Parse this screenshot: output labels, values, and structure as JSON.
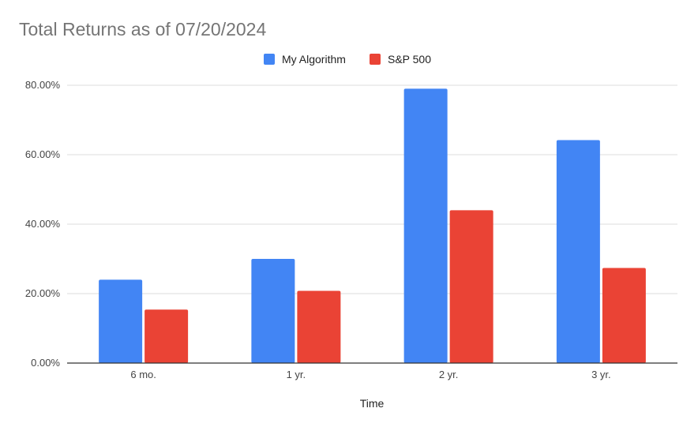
{
  "chart_data": {
    "type": "bar",
    "title": "Total Returns as of 07/20/2024",
    "xlabel": "Time",
    "ylabel": "",
    "categories": [
      "6 mo.",
      "1 yr.",
      "2 yr.",
      "3 yr."
    ],
    "series": [
      {
        "name": "My Algorithm",
        "color": "#4285F4",
        "values": [
          24.0,
          30.0,
          79.0,
          64.2
        ]
      },
      {
        "name": "S&P 500",
        "color": "#EA4335",
        "values": [
          15.4,
          20.8,
          44.0,
          27.4
        ]
      }
    ],
    "ylim": [
      0,
      80
    ],
    "yticks": [
      "0.00%",
      "20.00%",
      "40.00%",
      "60.00%",
      "80.00%"
    ],
    "grid": true,
    "legend_position": "top"
  }
}
